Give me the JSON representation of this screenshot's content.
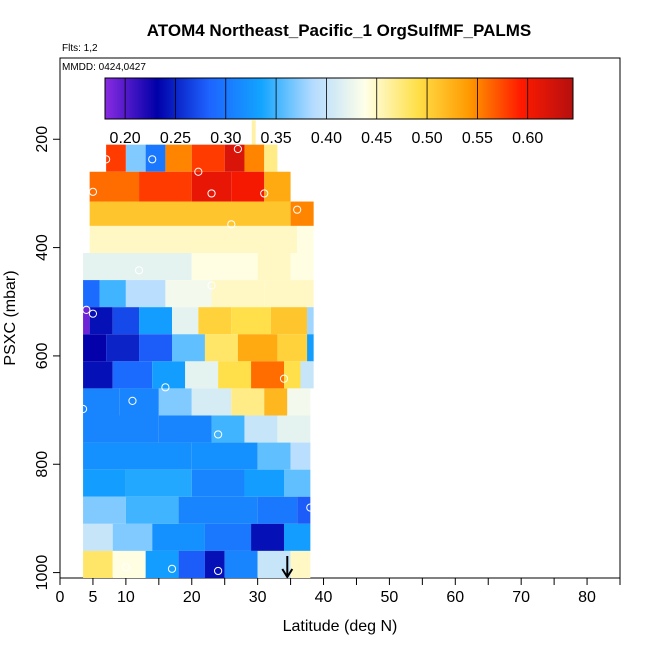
{
  "chart_data": {
    "type": "heatmap",
    "title": "ATOM4 Northeast_Pacific_1 OrgSulfMF_PALMS",
    "flights_text": "Flts: 1,2",
    "mmdd_text": "MMDD: 0424,0427",
    "xlabel": "Latitude (deg N)",
    "ylabel": "PSXC (mbar)",
    "xlim": [
      0,
      85
    ],
    "ylim": [
      1010,
      50
    ],
    "x_ticks": [
      0,
      5,
      10,
      20,
      30,
      40,
      50,
      60,
      70,
      80
    ],
    "x_tick_labels": [
      "0",
      "5",
      "10",
      "20",
      "30",
      "40",
      "50",
      "60",
      "70",
      "80"
    ],
    "y_ticks": [
      200,
      400,
      600,
      800,
      1000
    ],
    "y_tick_labels": [
      "200",
      "400",
      "600",
      "800",
      "1000"
    ],
    "colorbar": {
      "range": [
        0.18,
        0.645
      ],
      "ticks": [
        0.2,
        0.25,
        0.3,
        0.35,
        0.4,
        0.45,
        0.5,
        0.55,
        0.6
      ],
      "tick_labels": [
        "0.20",
        "0.25",
        "0.30",
        "0.35",
        "0.40",
        "0.45",
        "0.50",
        "0.55",
        "0.60"
      ],
      "colors": [
        "#8a2be2",
        "#0000a8",
        "#1e63ff",
        "#12a4ff",
        "#b4dcff",
        "#ffffe8",
        "#ffe04a",
        "#ff9a00",
        "#ff1a00",
        "#b50f0f"
      ]
    },
    "arrow_latitude": 34.5,
    "bands": [
      {
        "p_top": 165,
        "p_bot": 210,
        "segments": [
          {
            "x0": 29.1,
            "x1": 29.7,
            "v": 0.46
          }
        ]
      },
      {
        "p_top": 210,
        "p_bot": 260,
        "segments": [
          {
            "x0": 7,
            "x1": 10,
            "v": 0.58
          },
          {
            "x0": 10,
            "x1": 13,
            "v": 0.37
          },
          {
            "x0": 13,
            "x1": 16,
            "v": 0.3
          },
          {
            "x0": 16,
            "x1": 20,
            "v": 0.55
          },
          {
            "x0": 20,
            "x1": 25,
            "v": 0.58
          },
          {
            "x0": 25,
            "x1": 28,
            "v": 0.62
          },
          {
            "x0": 28,
            "x1": 31,
            "v": 0.55
          },
          {
            "x0": 31,
            "x1": 33,
            "v": 0.47
          }
        ]
      },
      {
        "p_top": 260,
        "p_bot": 315,
        "segments": [
          {
            "x0": 4.5,
            "x1": 12,
            "v": 0.56
          },
          {
            "x0": 12,
            "x1": 20,
            "v": 0.58
          },
          {
            "x0": 20,
            "x1": 26,
            "v": 0.61
          },
          {
            "x0": 26,
            "x1": 31,
            "v": 0.6
          },
          {
            "x0": 31,
            "x1": 35,
            "v": 0.53
          }
        ]
      },
      {
        "p_top": 315,
        "p_bot": 360,
        "segments": [
          {
            "x0": 4.5,
            "x1": 35,
            "v": 0.51
          },
          {
            "x0": 35,
            "x1": 38.5,
            "v": 0.55
          }
        ]
      },
      {
        "p_top": 360,
        "p_bot": 410,
        "segments": [
          {
            "x0": 4.5,
            "x1": 36,
            "v": 0.45
          },
          {
            "x0": 36,
            "x1": 38.5,
            "v": 0.44
          }
        ]
      },
      {
        "p_top": 410,
        "p_bot": 460,
        "segments": [
          {
            "x0": 3.5,
            "x1": 20,
            "v": 0.42
          },
          {
            "x0": 20,
            "x1": 30,
            "v": 0.44
          },
          {
            "x0": 30,
            "x1": 35,
            "v": 0.45
          },
          {
            "x0": 35,
            "x1": 38.5,
            "v": 0.44
          }
        ]
      },
      {
        "p_top": 460,
        "p_bot": 510,
        "segments": [
          {
            "x0": 3.5,
            "x1": 6,
            "v": 0.29
          },
          {
            "x0": 6,
            "x1": 10,
            "v": 0.35
          },
          {
            "x0": 10,
            "x1": 16,
            "v": 0.39
          },
          {
            "x0": 16,
            "x1": 23,
            "v": 0.43
          },
          {
            "x0": 23,
            "x1": 31,
            "v": 0.45
          },
          {
            "x0": 31,
            "x1": 38.5,
            "v": 0.45
          }
        ]
      },
      {
        "p_top": 510,
        "p_bot": 560,
        "segments": [
          {
            "x0": 3.5,
            "x1": 4.5,
            "v": 0.19
          },
          {
            "x0": 4.5,
            "x1": 8,
            "v": 0.24
          },
          {
            "x0": 8,
            "x1": 12,
            "v": 0.27
          },
          {
            "x0": 12,
            "x1": 17,
            "v": 0.33
          },
          {
            "x0": 17,
            "x1": 21,
            "v": 0.42
          },
          {
            "x0": 21,
            "x1": 26,
            "v": 0.5
          },
          {
            "x0": 26,
            "x1": 32,
            "v": 0.49
          },
          {
            "x0": 32,
            "x1": 37.5,
            "v": 0.51
          },
          {
            "x0": 37.5,
            "x1": 38.5,
            "v": 0.38
          }
        ]
      },
      {
        "p_top": 560,
        "p_bot": 610,
        "segments": [
          {
            "x0": 3.5,
            "x1": 7,
            "v": 0.23
          },
          {
            "x0": 7,
            "x1": 12,
            "v": 0.25
          },
          {
            "x0": 12,
            "x1": 17,
            "v": 0.28
          },
          {
            "x0": 17,
            "x1": 22,
            "v": 0.36
          },
          {
            "x0": 22,
            "x1": 27,
            "v": 0.48
          },
          {
            "x0": 27,
            "x1": 33,
            "v": 0.53
          },
          {
            "x0": 33,
            "x1": 37.5,
            "v": 0.5
          },
          {
            "x0": 37.5,
            "x1": 38.5,
            "v": 0.33
          }
        ]
      },
      {
        "p_top": 610,
        "p_bot": 660,
        "segments": [
          {
            "x0": 3.5,
            "x1": 8,
            "v": 0.24
          },
          {
            "x0": 8,
            "x1": 14,
            "v": 0.29
          },
          {
            "x0": 14,
            "x1": 19,
            "v": 0.33
          },
          {
            "x0": 19,
            "x1": 24,
            "v": 0.42
          },
          {
            "x0": 24,
            "x1": 29,
            "v": 0.49
          },
          {
            "x0": 29,
            "x1": 34,
            "v": 0.56
          },
          {
            "x0": 34,
            "x1": 36.5,
            "v": 0.49
          },
          {
            "x0": 36.5,
            "x1": 38.5,
            "v": 0.4
          }
        ]
      },
      {
        "p_top": 660,
        "p_bot": 710,
        "segments": [
          {
            "x0": 3.5,
            "x1": 9,
            "v": 0.31
          },
          {
            "x0": 9,
            "x1": 15,
            "v": 0.31
          },
          {
            "x0": 15,
            "x1": 20,
            "v": 0.37
          },
          {
            "x0": 20,
            "x1": 26,
            "v": 0.41
          },
          {
            "x0": 26,
            "x1": 31,
            "v": 0.47
          },
          {
            "x0": 31,
            "x1": 34.5,
            "v": 0.52
          },
          {
            "x0": 34.5,
            "x1": 38,
            "v": 0.43
          }
        ]
      },
      {
        "p_top": 710,
        "p_bot": 760,
        "segments": [
          {
            "x0": 3.5,
            "x1": 15,
            "v": 0.31
          },
          {
            "x0": 15,
            "x1": 23,
            "v": 0.31
          },
          {
            "x0": 23,
            "x1": 28,
            "v": 0.35
          },
          {
            "x0": 28,
            "x1": 33,
            "v": 0.4
          },
          {
            "x0": 33,
            "x1": 38,
            "v": 0.42
          }
        ]
      },
      {
        "p_top": 760,
        "p_bot": 810,
        "segments": [
          {
            "x0": 3.5,
            "x1": 20,
            "v": 0.32
          },
          {
            "x0": 20,
            "x1": 30,
            "v": 0.32
          },
          {
            "x0": 30,
            "x1": 35,
            "v": 0.36
          },
          {
            "x0": 35,
            "x1": 38,
            "v": 0.39
          }
        ]
      },
      {
        "p_top": 810,
        "p_bot": 860,
        "segments": [
          {
            "x0": 3.5,
            "x1": 10,
            "v": 0.33
          },
          {
            "x0": 10,
            "x1": 20,
            "v": 0.34
          },
          {
            "x0": 20,
            "x1": 28,
            "v": 0.31
          },
          {
            "x0": 28,
            "x1": 34,
            "v": 0.33
          },
          {
            "x0": 34,
            "x1": 38,
            "v": 0.36
          }
        ]
      },
      {
        "p_top": 860,
        "p_bot": 910,
        "segments": [
          {
            "x0": 3.5,
            "x1": 10,
            "v": 0.37
          },
          {
            "x0": 10,
            "x1": 18,
            "v": 0.35
          },
          {
            "x0": 18,
            "x1": 30,
            "v": 0.31
          },
          {
            "x0": 30,
            "x1": 36,
            "v": 0.3
          },
          {
            "x0": 36,
            "x1": 38,
            "v": 0.28
          }
        ]
      },
      {
        "p_top": 910,
        "p_bot": 960,
        "segments": [
          {
            "x0": 3.5,
            "x1": 8,
            "v": 0.4
          },
          {
            "x0": 8,
            "x1": 14,
            "v": 0.37
          },
          {
            "x0": 14,
            "x1": 22,
            "v": 0.32
          },
          {
            "x0": 22,
            "x1": 29,
            "v": 0.3
          },
          {
            "x0": 29,
            "x1": 34,
            "v": 0.24
          },
          {
            "x0": 34,
            "x1": 38,
            "v": 0.33
          }
        ]
      },
      {
        "p_top": 960,
        "p_bot": 1010,
        "segments": [
          {
            "x0": 3.5,
            "x1": 8,
            "v": 0.48
          },
          {
            "x0": 8,
            "x1": 13,
            "v": 0.44
          },
          {
            "x0": 13,
            "x1": 18,
            "v": 0.33
          },
          {
            "x0": 18,
            "x1": 22,
            "v": 0.28
          },
          {
            "x0": 22,
            "x1": 25,
            "v": 0.24
          },
          {
            "x0": 25,
            "x1": 30,
            "v": 0.31
          },
          {
            "x0": 30,
            "x1": 35,
            "v": 0.4
          },
          {
            "x0": 35,
            "x1": 38,
            "v": 0.45
          }
        ]
      }
    ],
    "points": [
      {
        "lat": 7,
        "p": 237
      },
      {
        "lat": 14,
        "p": 237
      },
      {
        "lat": 21,
        "p": 260
      },
      {
        "lat": 27,
        "p": 218
      },
      {
        "lat": 5,
        "p": 297
      },
      {
        "lat": 23,
        "p": 300
      },
      {
        "lat": 31,
        "p": 300
      },
      {
        "lat": 36,
        "p": 330
      },
      {
        "lat": 26,
        "p": 357
      },
      {
        "lat": 12,
        "p": 442
      },
      {
        "lat": 23,
        "p": 470
      },
      {
        "lat": 4,
        "p": 515
      },
      {
        "lat": 5,
        "p": 522
      },
      {
        "lat": 34,
        "p": 642
      },
      {
        "lat": 16,
        "p": 658
      },
      {
        "lat": 11,
        "p": 683
      },
      {
        "lat": 3.5,
        "p": 698
      },
      {
        "lat": 24,
        "p": 745
      },
      {
        "lat": 38,
        "p": 880
      },
      {
        "lat": 10,
        "p": 990
      },
      {
        "lat": 17,
        "p": 993
      },
      {
        "lat": 24,
        "p": 997
      }
    ]
  }
}
